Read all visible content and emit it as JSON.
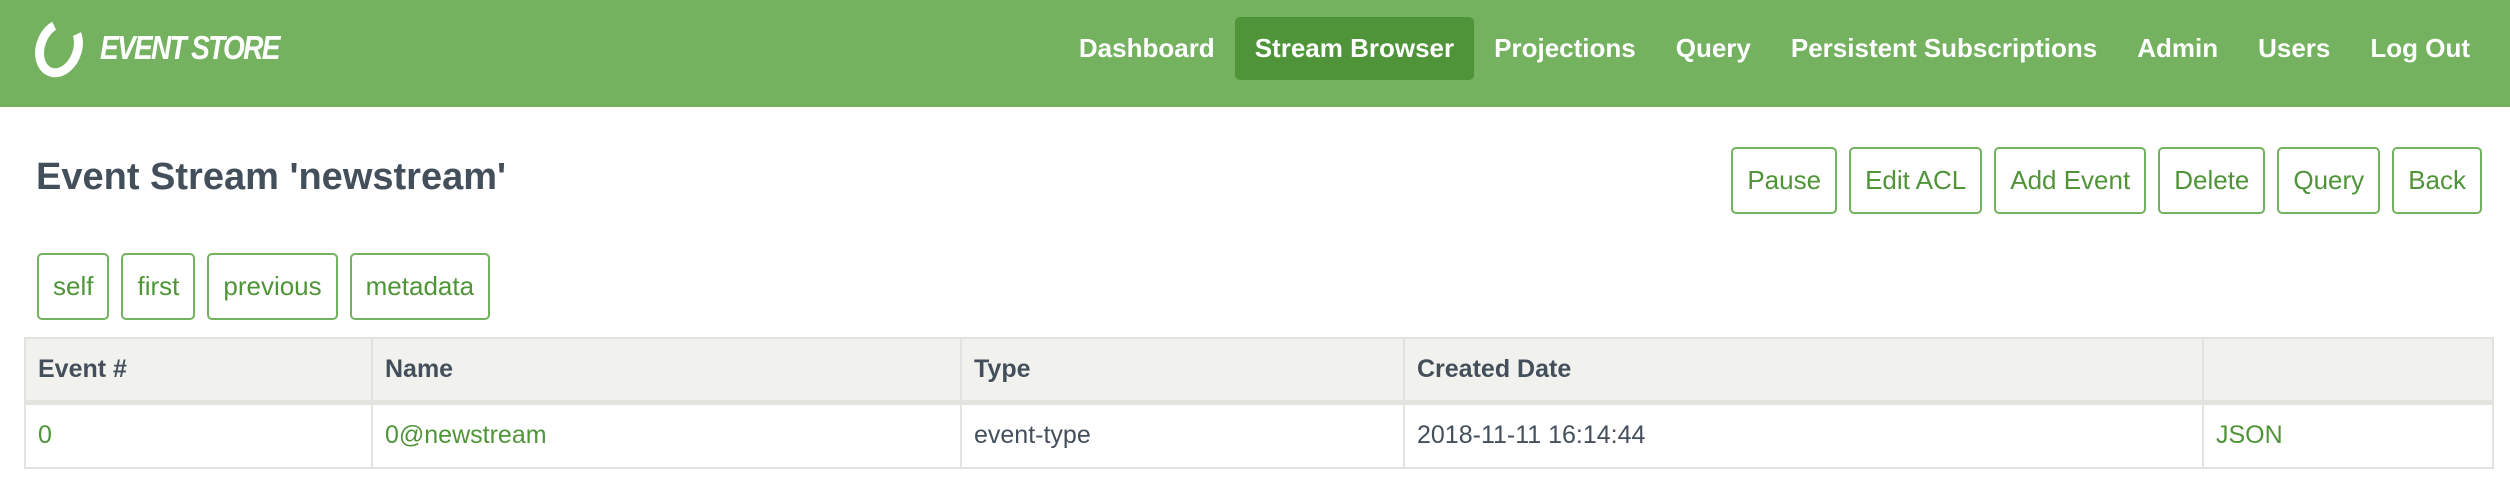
{
  "brand": {
    "name": "EVENT STORE"
  },
  "nav": {
    "items": [
      {
        "label": "Dashboard",
        "active": false
      },
      {
        "label": "Stream Browser",
        "active": true
      },
      {
        "label": "Projections",
        "active": false
      },
      {
        "label": "Query",
        "active": false
      },
      {
        "label": "Persistent Subscriptions",
        "active": false
      },
      {
        "label": "Admin",
        "active": false
      },
      {
        "label": "Users",
        "active": false
      },
      {
        "label": "Log Out",
        "active": false
      }
    ]
  },
  "page": {
    "title": "Event Stream 'newstream'"
  },
  "actions": [
    "Pause",
    "Edit ACL",
    "Add Event",
    "Delete",
    "Query",
    "Back"
  ],
  "links": [
    "self",
    "first",
    "previous",
    "metadata"
  ],
  "table": {
    "headers": [
      "Event #",
      "Name",
      "Type",
      "Created Date",
      ""
    ],
    "rows": [
      {
        "event": "0",
        "name": "0@newstream",
        "type": "event-type",
        "created": "2018-11-11 16:14:44",
        "json": "JSON"
      }
    ]
  },
  "colors": {
    "header": "#74b260",
    "active": "#509439",
    "link": "#509439",
    "text": "#444f5c"
  }
}
